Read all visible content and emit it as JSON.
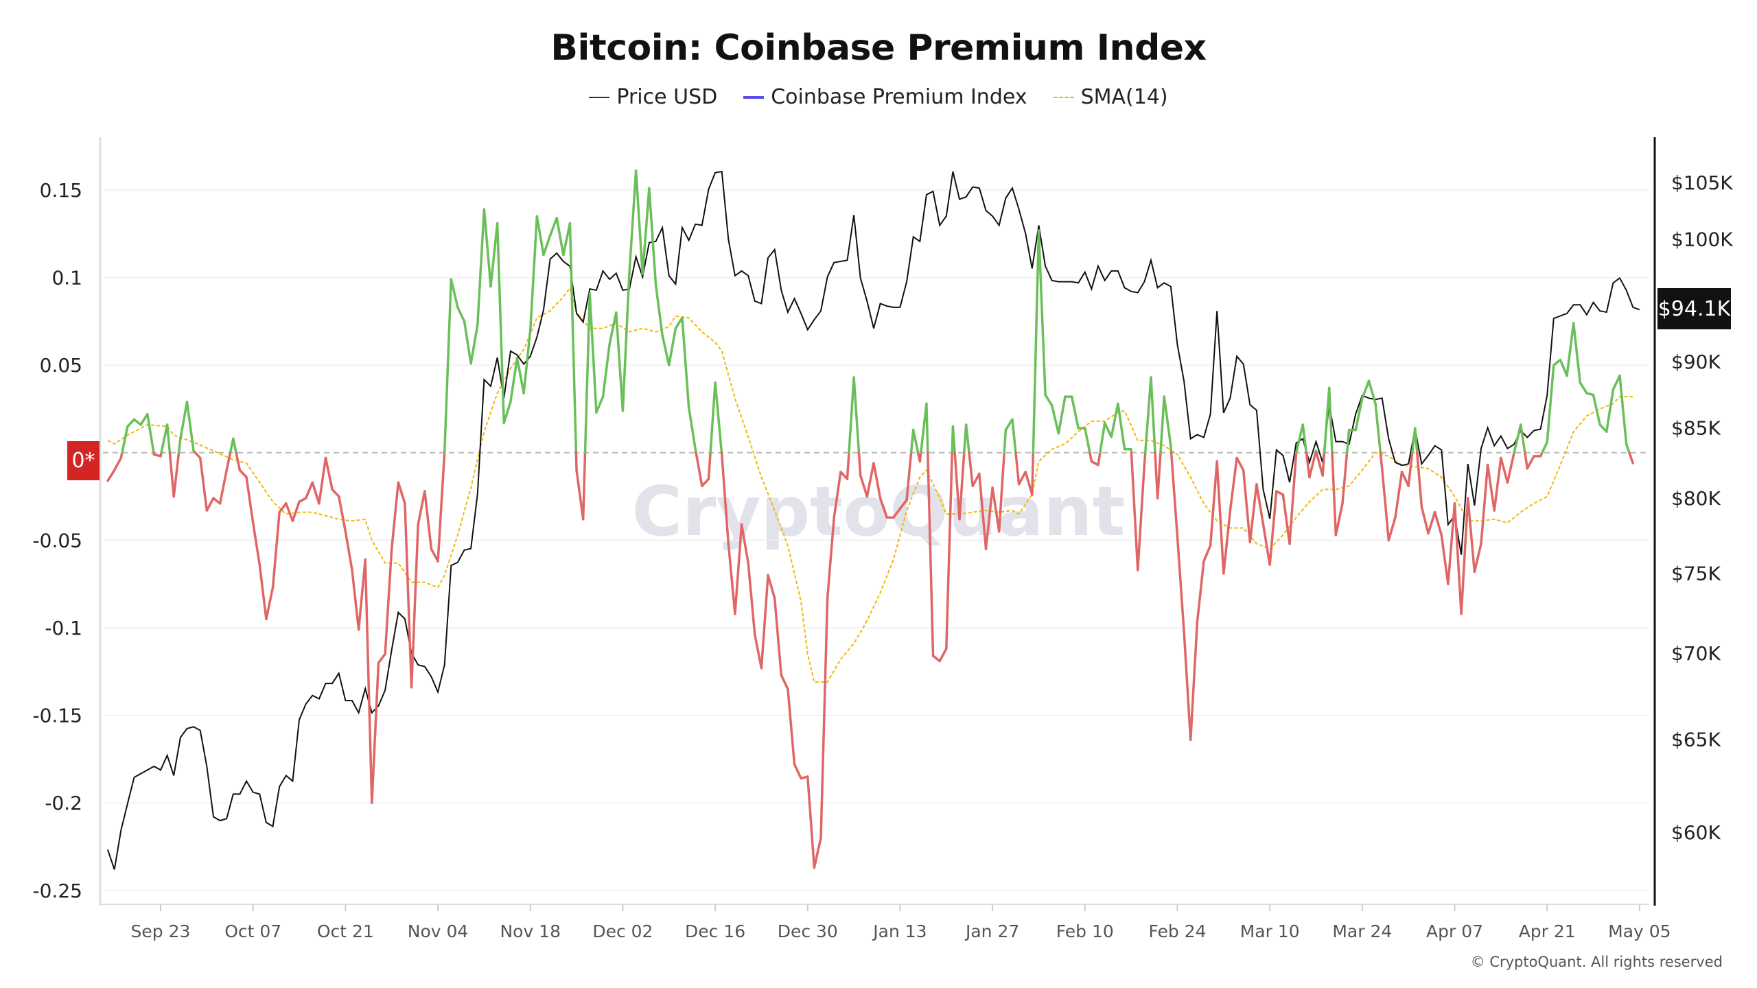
{
  "chart_data": {
    "type": "line",
    "title": "Bitcoin: Coinbase Premium Index",
    "legend": {
      "placement": "top-center",
      "items": [
        "Price USD",
        "Coinbase Premium Index",
        "SMA(14)"
      ]
    },
    "left_axis": {
      "ticks": [
        0.15,
        0.1,
        0.05,
        -0.05,
        -0.1,
        -0.15,
        -0.2,
        -0.25
      ],
      "tick_labels": [
        "0.15",
        "0.1",
        "0.05",
        "-0.05",
        "-0.1",
        "-0.15",
        "-0.2",
        "-0.25"
      ],
      "ylim": [
        -0.26,
        0.18
      ],
      "zero_label": "0*"
    },
    "right_axis": {
      "scale": "log",
      "ticks": [
        105,
        100,
        90,
        85,
        80,
        75,
        70,
        65,
        60
      ],
      "tick_labels": [
        "$105K",
        "$100K",
        "$90K",
        "$85K",
        "$80K",
        "$75K",
        "$70K",
        "$65K",
        "$60K"
      ],
      "last_value_label": "$94.1K"
    },
    "x_ticks": [
      "2024-09-23",
      "2024-10-07",
      "2024-10-21",
      "2024-11-04",
      "2024-11-18",
      "2024-12-02",
      "2024-12-16",
      "2024-12-30",
      "2025-01-13",
      "2025-01-27",
      "2025-02-10",
      "2025-02-24",
      "2025-03-10",
      "2025-03-24",
      "2025-04-07",
      "2025-04-21",
      "2025-05-05"
    ],
    "x_tick_labels": [
      "Sep 23",
      "Oct 07",
      "Oct 21",
      "Nov 04",
      "Nov 18",
      "Dec 02",
      "Dec 16",
      "Dec 30",
      "Jan 13",
      "Jan 27",
      "Feb 10",
      "Feb 24",
      "Mar 10",
      "Mar 24",
      "Apr 07",
      "Apr 21",
      "May 05"
    ],
    "grid": true,
    "colors": {
      "price": "#111111",
      "premium_positive": "#6abf59",
      "premium_negative": "#e06666",
      "premium_legend": "#5a4ee6",
      "sma": "#f2b705",
      "zero_badge": "#d42525"
    },
    "x": [
      "2024-09-15",
      "2024-09-16",
      "2024-09-17",
      "2024-09-18",
      "2024-09-19",
      "2024-09-20",
      "2024-09-21",
      "2024-09-22",
      "2024-09-23",
      "2024-09-24",
      "2024-09-25",
      "2024-09-26",
      "2024-09-27",
      "2024-09-28",
      "2024-09-29",
      "2024-09-30",
      "2024-10-01",
      "2024-10-02",
      "2024-10-03",
      "2024-10-04",
      "2024-10-05",
      "2024-10-06",
      "2024-10-07",
      "2024-10-08",
      "2024-10-09",
      "2024-10-10",
      "2024-10-11",
      "2024-10-12",
      "2024-10-13",
      "2024-10-14",
      "2024-10-15",
      "2024-10-16",
      "2024-10-17",
      "2024-10-18",
      "2024-10-19",
      "2024-10-20",
      "2024-10-21",
      "2024-10-22",
      "2024-10-23",
      "2024-10-24",
      "2024-10-25",
      "2024-10-26",
      "2024-10-27",
      "2024-10-28",
      "2024-10-29",
      "2024-10-30",
      "2024-10-31",
      "2024-11-01",
      "2024-11-02",
      "2024-11-03",
      "2024-11-04",
      "2024-11-05",
      "2024-11-06",
      "2024-11-07",
      "2024-11-08",
      "2024-11-09",
      "2024-11-10",
      "2024-11-11",
      "2024-11-12",
      "2024-11-13",
      "2024-11-14",
      "2024-11-15",
      "2024-11-16",
      "2024-11-17",
      "2024-11-18",
      "2024-11-19",
      "2024-11-20",
      "2024-11-21",
      "2024-11-22",
      "2024-11-23",
      "2024-11-24",
      "2024-11-25",
      "2024-11-26",
      "2024-11-27",
      "2024-11-28",
      "2024-11-29",
      "2024-11-30",
      "2024-12-01",
      "2024-12-02",
      "2024-12-03",
      "2024-12-04",
      "2024-12-05",
      "2024-12-06",
      "2024-12-07",
      "2024-12-08",
      "2024-12-09",
      "2024-12-10",
      "2024-12-11",
      "2024-12-12",
      "2024-12-13",
      "2024-12-14",
      "2024-12-15",
      "2024-12-16",
      "2024-12-17",
      "2024-12-18",
      "2024-12-19",
      "2024-12-20",
      "2024-12-21",
      "2024-12-22",
      "2024-12-23",
      "2024-12-24",
      "2024-12-25",
      "2024-12-26",
      "2024-12-27",
      "2024-12-28",
      "2024-12-29",
      "2024-12-30",
      "2024-12-31",
      "2025-01-01",
      "2025-01-02",
      "2025-01-03",
      "2025-01-04",
      "2025-01-05",
      "2025-01-06",
      "2025-01-07",
      "2025-01-08",
      "2025-01-09",
      "2025-01-10",
      "2025-01-11",
      "2025-01-12",
      "2025-01-13",
      "2025-01-14",
      "2025-01-15",
      "2025-01-16",
      "2025-01-17",
      "2025-01-18",
      "2025-01-19",
      "2025-01-20",
      "2025-01-21",
      "2025-01-22",
      "2025-01-23",
      "2025-01-24",
      "2025-01-25",
      "2025-01-26",
      "2025-01-27",
      "2025-01-28",
      "2025-01-29",
      "2025-01-30",
      "2025-01-31",
      "2025-02-01",
      "2025-02-02",
      "2025-02-03",
      "2025-02-04",
      "2025-02-05",
      "2025-02-06",
      "2025-02-07",
      "2025-02-08",
      "2025-02-09",
      "2025-02-10",
      "2025-02-11",
      "2025-02-12",
      "2025-02-13",
      "2025-02-14",
      "2025-02-15",
      "2025-02-16",
      "2025-02-17",
      "2025-02-18",
      "2025-02-19",
      "2025-02-20",
      "2025-02-21",
      "2025-02-22",
      "2025-02-23",
      "2025-02-24",
      "2025-02-25",
      "2025-02-26",
      "2025-02-27",
      "2025-02-28",
      "2025-03-01",
      "2025-03-02",
      "2025-03-03",
      "2025-03-04",
      "2025-03-05",
      "2025-03-06",
      "2025-03-07",
      "2025-03-08",
      "2025-03-09",
      "2025-03-10",
      "2025-03-11",
      "2025-03-12",
      "2025-03-13",
      "2025-03-14",
      "2025-03-15",
      "2025-03-16",
      "2025-03-17",
      "2025-03-18",
      "2025-03-19",
      "2025-03-20",
      "2025-03-21",
      "2025-03-22",
      "2025-03-23",
      "2025-03-24",
      "2025-03-25",
      "2025-03-26",
      "2025-03-27",
      "2025-03-28",
      "2025-03-29",
      "2025-03-30",
      "2025-03-31",
      "2025-04-01",
      "2025-04-02",
      "2025-04-03",
      "2025-04-04",
      "2025-04-05",
      "2025-04-06",
      "2025-04-07",
      "2025-04-08",
      "2025-04-09",
      "2025-04-10",
      "2025-04-11",
      "2025-04-12",
      "2025-04-13",
      "2025-04-14",
      "2025-04-15",
      "2025-04-16",
      "2025-04-17",
      "2025-04-18",
      "2025-04-19",
      "2025-04-20",
      "2025-04-21",
      "2025-04-22",
      "2025-04-23",
      "2025-04-24",
      "2025-04-25",
      "2025-04-26",
      "2025-04-27",
      "2025-04-28",
      "2025-04-29",
      "2025-04-30",
      "2025-05-01",
      "2025-05-02",
      "2025-05-03",
      "2025-05-04",
      "2025-05-05"
    ],
    "series": [
      {
        "name": "Coinbase Premium Index",
        "axis": "left",
        "values": [
          -0.016,
          -0.01,
          -0.003,
          0.015,
          0.019,
          0.016,
          0.022,
          -0.001,
          -0.002,
          0.016,
          -0.025,
          0.008,
          0.029,
          0.001,
          -0.003,
          -0.033,
          -0.026,
          -0.029,
          -0.01,
          0.008,
          -0.01,
          -0.014,
          -0.04,
          -0.064,
          -0.095,
          -0.077,
          -0.034,
          -0.029,
          -0.039,
          -0.028,
          -0.026,
          -0.017,
          -0.029,
          -0.003,
          -0.021,
          -0.025,
          -0.045,
          -0.067,
          -0.101,
          -0.061,
          -0.2,
          -0.12,
          -0.115,
          -0.055,
          -0.017,
          -0.029,
          -0.134,
          -0.041,
          -0.022,
          -0.055,
          -0.062,
          0.0,
          0.099,
          0.083,
          0.075,
          0.051,
          0.073,
          0.139,
          0.095,
          0.131,
          0.017,
          0.029,
          0.054,
          0.034,
          0.07,
          0.135,
          0.113,
          0.124,
          0.134,
          0.113,
          0.131,
          -0.01,
          -0.038,
          0.091,
          0.023,
          0.032,
          0.062,
          0.08,
          0.024,
          0.103,
          0.161,
          0.102,
          0.151,
          0.096,
          0.067,
          0.05,
          0.071,
          0.077,
          0.026,
          0.002,
          -0.019,
          -0.015,
          0.04,
          -0.001,
          -0.052,
          -0.092,
          -0.041,
          -0.063,
          -0.104,
          -0.123,
          -0.07,
          -0.083,
          -0.127,
          -0.135,
          -0.178,
          -0.186,
          -0.185,
          -0.237,
          -0.22,
          -0.083,
          -0.037,
          -0.011,
          -0.015,
          0.043,
          -0.013,
          -0.025,
          -0.006,
          -0.026,
          -0.037,
          -0.037,
          -0.032,
          -0.027,
          0.013,
          -0.005,
          0.028,
          -0.116,
          -0.119,
          -0.112,
          0.015,
          -0.038,
          0.016,
          -0.019,
          -0.012,
          -0.055,
          -0.02,
          -0.045,
          0.013,
          0.019,
          -0.018,
          -0.011,
          -0.024,
          0.127,
          0.033,
          0.027,
          0.011,
          0.032,
          0.032,
          0.014,
          0.014,
          -0.005,
          -0.007,
          0.017,
          0.009,
          0.028,
          0.002,
          0.002,
          -0.067,
          -0.007,
          0.043,
          -0.026,
          0.032,
          0.004,
          -0.048,
          -0.102,
          -0.164,
          -0.097,
          -0.062,
          -0.053,
          -0.005,
          -0.069,
          -0.033,
          -0.003,
          -0.01,
          -0.051,
          -0.018,
          -0.041,
          -0.064,
          -0.022,
          -0.024,
          -0.052,
          0.0,
          0.016,
          -0.014,
          0.001,
          -0.013,
          0.037,
          -0.047,
          -0.029,
          0.013,
          0.013,
          0.031,
          0.041,
          0.028,
          -0.009,
          -0.05,
          -0.037,
          -0.011,
          -0.019,
          0.014,
          -0.031,
          -0.046,
          -0.034,
          -0.047,
          -0.075,
          -0.029,
          -0.092,
          -0.026,
          -0.068,
          -0.052,
          -0.007,
          -0.033,
          -0.003,
          -0.017,
          0.0,
          0.016,
          -0.009,
          -0.002,
          -0.002,
          0.006,
          0.05,
          0.053,
          0.044,
          0.074,
          0.04,
          0.034,
          0.033,
          0.016,
          0.012,
          0.036,
          0.044,
          0.005,
          -0.006,
          null
        ]
      },
      {
        "name": "Price USD",
        "axis": "right",
        "unit": "$K",
        "values": [
          59.1,
          58.1,
          60.1,
          61.5,
          62.9,
          63.1,
          63.3,
          63.5,
          63.3,
          64.1,
          63.0,
          65.1,
          65.6,
          65.7,
          65.5,
          63.5,
          60.8,
          60.6,
          60.7,
          62.0,
          62.0,
          62.7,
          62.1,
          62.0,
          60.5,
          60.3,
          62.4,
          63.0,
          62.7,
          66.1,
          67.0,
          67.5,
          67.3,
          68.2,
          68.2,
          68.8,
          67.2,
          67.2,
          66.5,
          67.9,
          66.5,
          66.9,
          67.8,
          70.2,
          72.5,
          72.1,
          70.0,
          69.3,
          69.2,
          68.6,
          67.7,
          69.3,
          75.5,
          75.7,
          76.5,
          76.6,
          80.3,
          88.6,
          88.1,
          90.3,
          87.2,
          90.8,
          90.5,
          89.8,
          90.4,
          91.9,
          94.1,
          98.3,
          98.8,
          98.1,
          97.7,
          93.8,
          93.1,
          95.8,
          95.7,
          97.3,
          96.6,
          97.1,
          95.7,
          95.8,
          98.5,
          96.8,
          99.7,
          99.8,
          101.0,
          96.9,
          96.2,
          101.0,
          99.9,
          101.3,
          101.2,
          104.4,
          105.9,
          106.0,
          100.0,
          96.9,
          97.3,
          96.9,
          94.8,
          94.6,
          98.4,
          99.1,
          95.7,
          93.9,
          95.0,
          93.8,
          92.5,
          93.3,
          94.0,
          96.8,
          98.0,
          98.1,
          98.2,
          102.1,
          96.7,
          94.8,
          92.6,
          94.6,
          94.4,
          94.3,
          94.3,
          96.4,
          100.2,
          99.8,
          103.9,
          104.2,
          101.2,
          102.0,
          106.0,
          103.5,
          103.7,
          104.6,
          104.5,
          102.5,
          102.0,
          101.2,
          103.6,
          104.5,
          102.6,
          100.5,
          97.5,
          101.2,
          97.7,
          96.5,
          96.4,
          96.4,
          96.4,
          96.3,
          97.2,
          95.8,
          97.7,
          96.5,
          97.3,
          97.3,
          95.9,
          95.6,
          95.5,
          96.4,
          98.2,
          95.9,
          96.3,
          96.0,
          91.3,
          88.5,
          84.2,
          84.5,
          84.3,
          86.0,
          94.0,
          86.1,
          87.2,
          90.4,
          89.8,
          86.7,
          86.3,
          80.6,
          78.6,
          83.4,
          83.0,
          81.1,
          83.9,
          84.2,
          82.5,
          84.0,
          82.5,
          86.7,
          84.0,
          84.0,
          83.8,
          86.0,
          87.4,
          87.2,
          87.1,
          87.2,
          84.2,
          82.5,
          82.3,
          82.4,
          84.9,
          82.4,
          83.0,
          83.7,
          83.4,
          78.2,
          78.8,
          76.2,
          82.4,
          79.5,
          83.5,
          85.0,
          83.7,
          84.4,
          83.5,
          83.8,
          84.8,
          84.3,
          84.8,
          84.9,
          87.4,
          93.4,
          93.6,
          93.8,
          94.5,
          94.5,
          93.7,
          94.7,
          94.0,
          93.9,
          96.3,
          96.7,
          95.7,
          94.3,
          94.1
        ]
      },
      {
        "name": "SMA(14)",
        "axis": "left",
        "values": [
          0.007,
          0.005,
          null,
          0.01,
          null,
          null,
          0.016,
          null,
          null,
          0.015,
          0.01,
          null,
          null,
          0.006,
          null,
          null,
          0.001,
          null,
          null,
          -0.004,
          null,
          -0.006,
          null,
          -0.017,
          null,
          -0.028,
          null,
          -0.035,
          null,
          -0.034,
          null,
          -0.034,
          null,
          -0.036,
          null,
          -0.038,
          null,
          -0.039,
          null,
          -0.038,
          -0.05,
          null,
          -0.063,
          null,
          -0.063,
          null,
          -0.074,
          null,
          -0.074,
          null,
          -0.077,
          -0.07,
          null,
          -0.047,
          null,
          -0.02,
          null,
          0.012,
          null,
          0.034,
          null,
          0.048,
          null,
          0.059,
          null,
          0.077,
          null,
          0.081,
          null,
          0.089,
          0.094,
          0.08,
          null,
          0.071,
          null,
          0.071,
          null,
          0.074,
          null,
          0.069,
          null,
          0.071,
          null,
          0.069,
          null,
          0.072,
          0.078,
          null,
          0.077,
          null,
          0.069,
          null,
          0.063,
          0.058,
          null,
          0.031,
          null,
          0.009,
          null,
          -0.014,
          null,
          -0.033,
          null,
          -0.053,
          null,
          -0.085,
          -0.115,
          -0.131,
          null,
          -0.131,
          null,
          -0.118,
          null,
          -0.109,
          null,
          -0.096,
          null,
          -0.08,
          null,
          -0.061,
          null,
          -0.033,
          null,
          -0.014,
          -0.01,
          null,
          -0.026,
          -0.035,
          null,
          -0.035,
          null,
          -0.034,
          null,
          -0.033,
          null,
          -0.034,
          null,
          -0.033,
          -0.035,
          null,
          -0.024,
          -0.005,
          null,
          0.002,
          null,
          0.005,
          null,
          0.012,
          null,
          0.018,
          null,
          0.018,
          null,
          0.023,
          0.024,
          null,
          0.007,
          null,
          0.007,
          null,
          0.004,
          null,
          -0.001,
          null,
          -0.014,
          null,
          -0.029,
          null,
          -0.039,
          null,
          -0.043,
          null,
          -0.043,
          null,
          -0.052,
          null,
          -0.055,
          null,
          -0.047,
          null,
          -0.037,
          null,
          -0.028,
          null,
          -0.021,
          null,
          -0.021,
          null,
          -0.019,
          null,
          -0.01,
          null,
          0.0,
          null,
          -0.002,
          null,
          -0.007,
          null,
          -0.008,
          null,
          -0.009,
          null,
          -0.014,
          null,
          -0.025,
          null,
          -0.039,
          null,
          -0.039,
          null,
          -0.038,
          null,
          -0.04,
          null,
          -0.034,
          null,
          -0.029,
          null,
          -0.025,
          null,
          -0.007,
          null,
          0.012,
          null,
          0.021,
          null,
          0.025,
          null,
          0.028,
          0.032,
          null,
          0.032,
          null
        ]
      }
    ],
    "watermark": "CryptoQuant",
    "copyright": "© CryptoQuant. All rights reserved"
  }
}
